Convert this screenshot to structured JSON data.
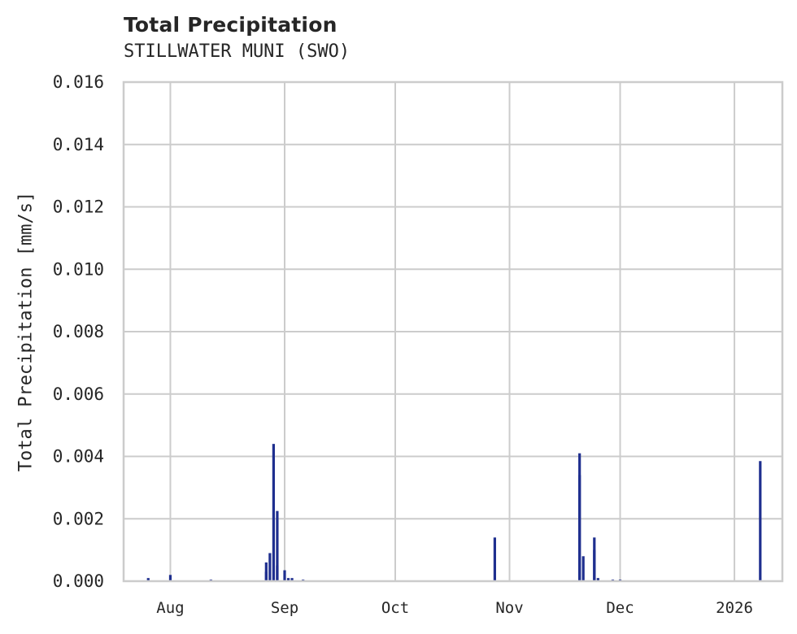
{
  "chart_data": {
    "type": "bar",
    "title": "Total Precipitation",
    "subtitle": "STILLWATER MUNI (SWO)",
    "xlabel": "",
    "ylabel": "Total Precipitation [mm/s]",
    "ylim": [
      0.0,
      0.016
    ],
    "yticks": [
      "0.000",
      "0.002",
      "0.004",
      "0.006",
      "0.008",
      "0.010",
      "0.012",
      "0.014",
      "0.016"
    ],
    "xticks": [
      "Aug",
      "Sep",
      "Oct",
      "Nov",
      "Dec",
      "2026"
    ],
    "grid": true,
    "legend": null,
    "series_color": "#1f2f8f",
    "series": [
      {
        "name": "Total Precipitation",
        "points": [
          {
            "date": "2025-07-26",
            "value": 0.0001
          },
          {
            "date": "2025-08-01",
            "value": 0.0002
          },
          {
            "date": "2025-08-12",
            "value": 5e-05
          },
          {
            "date": "2025-08-27",
            "value": 0.0003
          },
          {
            "date": "2025-08-27",
            "value": 0.0006
          },
          {
            "date": "2025-08-28",
            "value": 0.0009
          },
          {
            "date": "2025-08-29",
            "value": 0.0044
          },
          {
            "date": "2025-08-30",
            "value": 0.00225
          },
          {
            "date": "2025-08-30",
            "value": 0.0005
          },
          {
            "date": "2025-09-01",
            "value": 0.00035
          },
          {
            "date": "2025-09-02",
            "value": 0.0001
          },
          {
            "date": "2025-09-03",
            "value": 0.0001
          },
          {
            "date": "2025-09-06",
            "value": 5e-05
          },
          {
            "date": "2025-10-28",
            "value": 0.0014
          },
          {
            "date": "2025-11-20",
            "value": 0.0041
          },
          {
            "date": "2025-11-20",
            "value": 0.0034
          },
          {
            "date": "2025-11-21",
            "value": 0.0008
          },
          {
            "date": "2025-11-24",
            "value": 0.0014
          },
          {
            "date": "2025-11-24",
            "value": 0.001
          },
          {
            "date": "2025-11-25",
            "value": 0.0001
          },
          {
            "date": "2025-11-29",
            "value": 5e-05
          },
          {
            "date": "2025-12-01",
            "value": 5e-05
          },
          {
            "date": "2026-01-08",
            "value": 0.00385
          }
        ]
      }
    ]
  }
}
